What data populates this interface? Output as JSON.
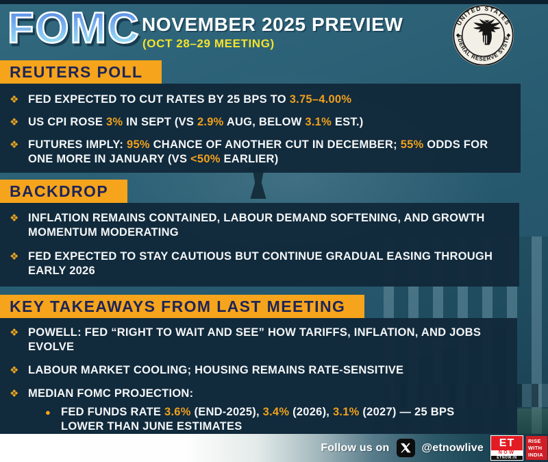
{
  "header": {
    "brand": "FOMC",
    "title": "NOVEMBER 2025 PREVIEW",
    "subtitle": "(OCT 28–29 MEETING)",
    "seal": {
      "top_text": "UNITED STATES",
      "bottom_text": "FEDERAL RESERVE SYSTEM",
      "icon": "federal-reserve-eagle-seal"
    }
  },
  "icons": {
    "bullet": "❖",
    "sub_bullet": "●",
    "x_logo": "x-twitter-icon"
  },
  "colors": {
    "background_teal": "#2b6076",
    "panel_navy": "#11293a",
    "banner_orange": "#f5a41c",
    "banner_text_navy": "#1e2556",
    "highlight_orange": "#f0a11c",
    "subtitle_yellow": "#f3e32b",
    "brand_red": "#e31b23"
  },
  "sections": [
    {
      "heading": "REUTERS POLL",
      "bullets": [
        {
          "segments": [
            {
              "text": "FED EXPECTED TO CUT RATES BY 25 BPS TO "
            },
            {
              "text": "3.75–4.00%",
              "highlight": true
            }
          ]
        },
        {
          "segments": [
            {
              "text": "US CPI ROSE "
            },
            {
              "text": "3%",
              "highlight": true
            },
            {
              "text": " IN SEPT (VS "
            },
            {
              "text": "2.9%",
              "highlight": true
            },
            {
              "text": " AUG, BELOW "
            },
            {
              "text": "3.1%",
              "highlight": true
            },
            {
              "text": " EST.)"
            }
          ]
        },
        {
          "segments": [
            {
              "text": "FUTURES IMPLY: "
            },
            {
              "text": "95%",
              "highlight": true
            },
            {
              "text": " CHANCE OF ANOTHER CUT IN DECEMBER; "
            },
            {
              "text": "55%",
              "highlight": true
            },
            {
              "text": " ODDS FOR\nONE MORE IN JANUARY (VS "
            },
            {
              "text": "<50%",
              "highlight": true
            },
            {
              "text": " EARLIER)"
            }
          ]
        }
      ]
    },
    {
      "heading": "BACKDROP",
      "bullets": [
        {
          "segments": [
            {
              "text": "INFLATION REMAINS CONTAINED, LABOUR DEMAND SOFTENING, AND GROWTH\nMOMENTUM MODERATING"
            }
          ]
        },
        {
          "segments": [
            {
              "text": "FED EXPECTED TO STAY CAUTIOUS BUT CONTINUE GRADUAL EASING THROUGH\nEARLY 2026"
            }
          ]
        }
      ]
    },
    {
      "heading": "KEY TAKEAWAYS FROM LAST MEETING",
      "bullets": [
        {
          "segments": [
            {
              "text": "POWELL: FED “RIGHT TO WAIT AND SEE” HOW TARIFFS, INFLATION, AND JOBS\nEVOLVE"
            }
          ]
        },
        {
          "segments": [
            {
              "text": "LABOUR MARKET COOLING; HOUSING REMAINS RATE-SENSITIVE"
            }
          ]
        },
        {
          "pre_sub": true,
          "segments": [
            {
              "text": "MEDIAN FOMC PROJECTION:"
            }
          ]
        },
        {
          "sub": true,
          "segments": [
            {
              "text": "FED FUNDS RATE "
            },
            {
              "text": "3.6%",
              "highlight": true
            },
            {
              "text": " (END-2025), "
            },
            {
              "text": "3.4%",
              "highlight": true
            },
            {
              "text": " (2026), "
            },
            {
              "text": "3.1%",
              "highlight": true
            },
            {
              "text": " (2027) — 25 BPS\nLOWER THAN JUNE ESTIMATES"
            }
          ]
        }
      ]
    }
  ],
  "footer": {
    "follow_label": "Follow us on",
    "handle": "@etnowlive",
    "logo": {
      "et": "ET",
      "now": "NOW",
      "site": "ETNOW.IN"
    },
    "tagline": {
      "line1": "RISE",
      "line2": "WITH",
      "line3": "INDIA"
    }
  }
}
